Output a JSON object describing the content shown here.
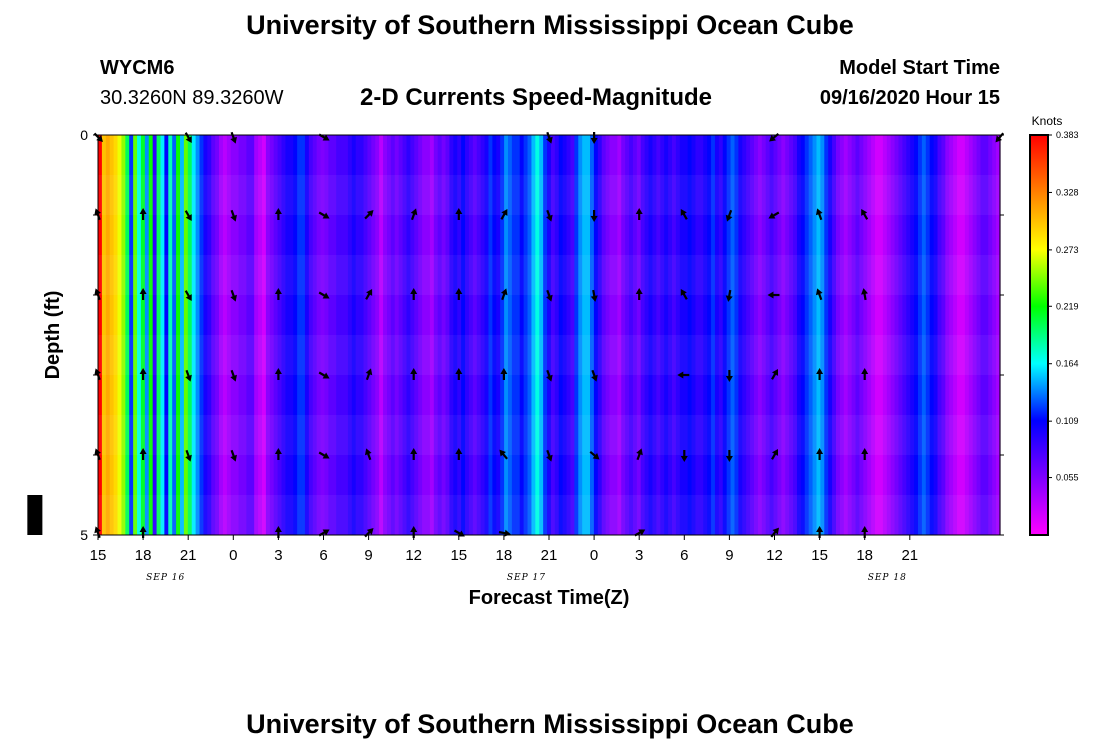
{
  "header": {
    "title": "University of Southern Mississippi Ocean Cube",
    "station_id": "WYCM6",
    "station_coords": "30.3260N 89.3260W",
    "chart_title": "2-D Currents Speed-Magnitude",
    "model_label": "Model Start Time",
    "model_time": "09/16/2020 Hour 15"
  },
  "footer": {
    "title": "University of Southern Mississippi Ocean Cube"
  },
  "chart_data": {
    "type": "heatmap",
    "title": "2-D Currents Speed-Magnitude",
    "xlabel": "Forecast Time(Z)",
    "ylabel": "Depth (ft)",
    "x_hours": [
      15,
      75
    ],
    "ylim": [
      0,
      5
    ],
    "y_ticks": [
      "0",
      "5"
    ],
    "x_tick_labels": [
      "15",
      "18",
      "21",
      "0",
      "3",
      "6",
      "9",
      "12",
      "15",
      "18",
      "21",
      "0",
      "3",
      "6",
      "9",
      "12",
      "15",
      "18",
      "21"
    ],
    "date_labels": [
      {
        "label": "SEP 16",
        "hour": 19.5
      },
      {
        "label": "SEP 17",
        "hour": 43.5
      },
      {
        "label": "SEP 18",
        "hour": 67.5
      }
    ],
    "colorbar": {
      "units": "Knots",
      "min": 0.0,
      "max": 0.383,
      "ticks": [
        "0.383",
        "0.328",
        "0.273",
        "0.219",
        "0.164",
        "0.109",
        "0.055"
      ],
      "colors": [
        "#ff00ff",
        "#8000ff",
        "#0000ff",
        "#00ffff",
        "#00ff00",
        "#ffff00",
        "#ff8000",
        "#ff0000"
      ]
    },
    "speed_knots": [
      0.383,
      0.3,
      0.31,
      0.3,
      0.29,
      0.27,
      0.25,
      0.2,
      0.12,
      0.24,
      0.17,
      0.21,
      0.14,
      0.22,
      0.09,
      0.2,
      0.16,
      0.11,
      0.18,
      0.13,
      0.22,
      0.15,
      0.24,
      0.2,
      0.16,
      0.14,
      0.12,
      0.1,
      0.09,
      0.07,
      0.06,
      0.04,
      0.03,
      0.04,
      0.05,
      0.05,
      0.06,
      0.06,
      0.07,
      0.07,
      0.04,
      0.03,
      0.02,
      0.05,
      0.06,
      0.07,
      0.08,
      0.09,
      0.1,
      0.1,
      0.11,
      0.12,
      0.12,
      0.1,
      0.08,
      0.07,
      0.06,
      0.055,
      0.06,
      0.07,
      0.07,
      0.08,
      0.08,
      0.08,
      0.09,
      0.1,
      0.09,
      0.09,
      0.08,
      0.07,
      0.06,
      0.05,
      0.03,
      0.05,
      0.06,
      0.07,
      0.06,
      0.07,
      0.08,
      0.09,
      0.08,
      0.07,
      0.06,
      0.05,
      0.05,
      0.04,
      0.06,
      0.07,
      0.06,
      0.07,
      0.09,
      0.1,
      0.09,
      0.11,
      0.09,
      0.08,
      0.07,
      0.08,
      0.09,
      0.1,
      0.12,
      0.11,
      0.1,
      0.12,
      0.14,
      0.13,
      0.12,
      0.12,
      0.11,
      0.12,
      0.13,
      0.15,
      0.17,
      0.15,
      0.12,
      0.1,
      0.08,
      0.09,
      0.11,
      0.1,
      0.09,
      0.08,
      0.12,
      0.14,
      0.15,
      0.15,
      0.13,
      0.11,
      0.09,
      0.07,
      0.06,
      0.05,
      0.05,
      0.04,
      0.06,
      0.07,
      0.08,
      0.07,
      0.06,
      0.08,
      0.09,
      0.1,
      0.09,
      0.08,
      0.09,
      0.1,
      0.09,
      0.08,
      0.09,
      0.1,
      0.1,
      0.11,
      0.1,
      0.09,
      0.09,
      0.1,
      0.11,
      0.12,
      0.1,
      0.09,
      0.11,
      0.12,
      0.13,
      0.12,
      0.1,
      0.09,
      0.08,
      0.07,
      0.06,
      0.05,
      0.06,
      0.07,
      0.08,
      0.07,
      0.06,
      0.05,
      0.06,
      0.07,
      0.08,
      0.1,
      0.11,
      0.12,
      0.13,
      0.14,
      0.15,
      0.14,
      0.12,
      0.1,
      0.08,
      0.06,
      0.05,
      0.04,
      0.05,
      0.06,
      0.07,
      0.06,
      0.05,
      0.04,
      0.03,
      0.02,
      0.02,
      0.03,
      0.04,
      0.05,
      0.06,
      0.07,
      0.08,
      0.09,
      0.1,
      0.11,
      0.12,
      0.13,
      0.12,
      0.11,
      0.1,
      0.08,
      0.07,
      0.05,
      0.04,
      0.03,
      0.02,
      0.02,
      0.03,
      0.04,
      0.05,
      0.06,
      0.07,
      0.07,
      0.06,
      0.05,
      0.04
    ],
    "arrows": [
      {
        "hour": 15,
        "depth": 0,
        "angle": 135
      },
      {
        "hour": 15,
        "depth": 1,
        "angle": -20
      },
      {
        "hour": 15,
        "depth": 2,
        "angle": -20
      },
      {
        "hour": 15,
        "depth": 3,
        "angle": -20
      },
      {
        "hour": 15,
        "depth": 4,
        "angle": -20
      },
      {
        "hour": 15,
        "depth": 5,
        "angle": -20
      },
      {
        "hour": 18,
        "depth": 1,
        "angle": 0
      },
      {
        "hour": 18,
        "depth": 2,
        "angle": 0
      },
      {
        "hour": 18,
        "depth": 3,
        "angle": 0
      },
      {
        "hour": 18,
        "depth": 4,
        "angle": 0
      },
      {
        "hour": 18,
        "depth": 5,
        "angle": 0
      },
      {
        "hour": 21,
        "depth": 0,
        "angle": 150
      },
      {
        "hour": 21,
        "depth": 1,
        "angle": 150
      },
      {
        "hour": 21,
        "depth": 2,
        "angle": 150
      },
      {
        "hour": 21,
        "depth": 3,
        "angle": 160
      },
      {
        "hour": 21,
        "depth": 4,
        "angle": 160
      },
      {
        "hour": 24,
        "depth": 0,
        "angle": 160
      },
      {
        "hour": 24,
        "depth": 1,
        "angle": 160
      },
      {
        "hour": 24,
        "depth": 2,
        "angle": 160
      },
      {
        "hour": 24,
        "depth": 3,
        "angle": 160
      },
      {
        "hour": 24,
        "depth": 4,
        "angle": 160
      },
      {
        "hour": 27,
        "depth": 1,
        "angle": 0
      },
      {
        "hour": 27,
        "depth": 2,
        "angle": 0
      },
      {
        "hour": 27,
        "depth": 3,
        "angle": 0
      },
      {
        "hour": 27,
        "depth": 4,
        "angle": 0
      },
      {
        "hour": 27,
        "depth": 5,
        "angle": 0
      },
      {
        "hour": 30,
        "depth": 0,
        "angle": 120
      },
      {
        "hour": 30,
        "depth": 1,
        "angle": 120
      },
      {
        "hour": 30,
        "depth": 2,
        "angle": 120
      },
      {
        "hour": 30,
        "depth": 3,
        "angle": 120
      },
      {
        "hour": 30,
        "depth": 4,
        "angle": 120
      },
      {
        "hour": 30,
        "depth": 5,
        "angle": 60
      },
      {
        "hour": 33,
        "depth": 1,
        "angle": 45
      },
      {
        "hour": 33,
        "depth": 2,
        "angle": 30
      },
      {
        "hour": 33,
        "depth": 3,
        "angle": 20
      },
      {
        "hour": 33,
        "depth": 4,
        "angle": -20
      },
      {
        "hour": 33,
        "depth": 5,
        "angle": 45
      },
      {
        "hour": 36,
        "depth": 1,
        "angle": 20
      },
      {
        "hour": 36,
        "depth": 2,
        "angle": 0
      },
      {
        "hour": 36,
        "depth": 3,
        "angle": 0
      },
      {
        "hour": 36,
        "depth": 4,
        "angle": 0
      },
      {
        "hour": 36,
        "depth": 5,
        "angle": 0
      },
      {
        "hour": 39,
        "depth": 1,
        "angle": 0
      },
      {
        "hour": 39,
        "depth": 2,
        "angle": 0
      },
      {
        "hour": 39,
        "depth": 3,
        "angle": 0
      },
      {
        "hour": 39,
        "depth": 4,
        "angle": 0
      },
      {
        "hour": 39,
        "depth": 5,
        "angle": 120
      },
      {
        "hour": 42,
        "depth": 1,
        "angle": 30
      },
      {
        "hour": 42,
        "depth": 2,
        "angle": 20
      },
      {
        "hour": 42,
        "depth": 3,
        "angle": 0
      },
      {
        "hour": 42,
        "depth": 4,
        "angle": -40
      },
      {
        "hour": 42,
        "depth": 5,
        "angle": 100
      },
      {
        "hour": 45,
        "depth": 0,
        "angle": 160
      },
      {
        "hour": 45,
        "depth": 1,
        "angle": 160
      },
      {
        "hour": 45,
        "depth": 2,
        "angle": 160
      },
      {
        "hour": 45,
        "depth": 3,
        "angle": 160
      },
      {
        "hour": 45,
        "depth": 4,
        "angle": 160
      },
      {
        "hour": 48,
        "depth": 0,
        "angle": 180
      },
      {
        "hour": 48,
        "depth": 1,
        "angle": 180
      },
      {
        "hour": 48,
        "depth": 2,
        "angle": 170
      },
      {
        "hour": 48,
        "depth": 3,
        "angle": 160
      },
      {
        "hour": 48,
        "depth": 4,
        "angle": 130
      },
      {
        "hour": 51,
        "depth": 1,
        "angle": 0
      },
      {
        "hour": 51,
        "depth": 2,
        "angle": 0
      },
      {
        "hour": 51,
        "depth": 4,
        "angle": 20
      },
      {
        "hour": 51,
        "depth": 5,
        "angle": 60
      },
      {
        "hour": 54,
        "depth": 1,
        "angle": -30
      },
      {
        "hour": 54,
        "depth": 2,
        "angle": -30
      },
      {
        "hour": 54,
        "depth": 3,
        "angle": -90
      },
      {
        "hour": 54,
        "depth": 4,
        "angle": 180
      },
      {
        "hour": 57,
        "depth": 1,
        "angle": -160
      },
      {
        "hour": 57,
        "depth": 2,
        "angle": -170
      },
      {
        "hour": 57,
        "depth": 3,
        "angle": 180
      },
      {
        "hour": 57,
        "depth": 4,
        "angle": 180
      },
      {
        "hour": 60,
        "depth": 0,
        "angle": -130
      },
      {
        "hour": 60,
        "depth": 1,
        "angle": -120
      },
      {
        "hour": 60,
        "depth": 2,
        "angle": -90
      },
      {
        "hour": 60,
        "depth": 3,
        "angle": 30
      },
      {
        "hour": 60,
        "depth": 4,
        "angle": 30
      },
      {
        "hour": 60,
        "depth": 5,
        "angle": 40
      },
      {
        "hour": 63,
        "depth": 1,
        "angle": -20
      },
      {
        "hour": 63,
        "depth": 2,
        "angle": -20
      },
      {
        "hour": 63,
        "depth": 3,
        "angle": 0
      },
      {
        "hour": 63,
        "depth": 4,
        "angle": 0
      },
      {
        "hour": 63,
        "depth": 5,
        "angle": 0
      },
      {
        "hour": 66,
        "depth": 1,
        "angle": -30
      },
      {
        "hour": 66,
        "depth": 2,
        "angle": -10
      },
      {
        "hour": 66,
        "depth": 3,
        "angle": 0
      },
      {
        "hour": 66,
        "depth": 4,
        "angle": 0
      },
      {
        "hour": 66,
        "depth": 5,
        "angle": 0
      },
      {
        "hour": 75,
        "depth": 0,
        "angle": -140
      }
    ],
    "black_bar": {
      "hour_start": 10.3,
      "hour_end": 11.3,
      "depth_start": 4.5,
      "depth_end": 5.0
    }
  }
}
